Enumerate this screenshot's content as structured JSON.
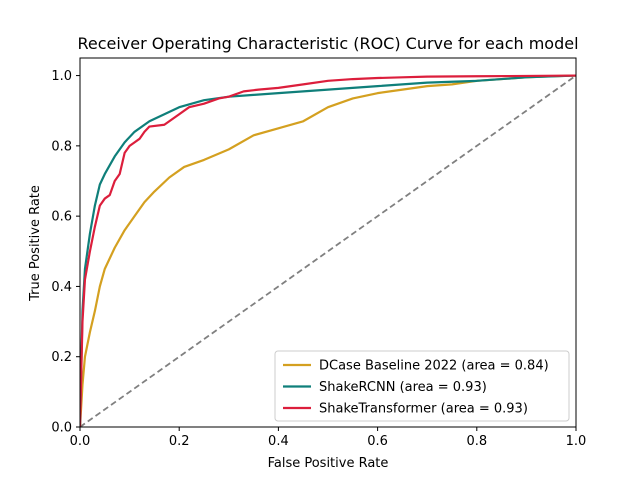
{
  "chart_data": {
    "type": "line",
    "title": "Receiver Operating Characteristic (ROC) Curve for each model",
    "xlabel": "False Positive Rate",
    "ylabel": "True Positive Rate",
    "xlim": [
      0,
      1
    ],
    "ylim": [
      0,
      1.05
    ],
    "xticks": [
      "0.0",
      "0.2",
      "0.4",
      "0.6",
      "0.8",
      "1.0"
    ],
    "yticks": [
      "0.0",
      "0.2",
      "0.4",
      "0.6",
      "0.8",
      "1.0"
    ],
    "grid": false,
    "legend_position": "lower-right",
    "reference_line": {
      "x": [
        0,
        1
      ],
      "y": [
        0,
        1
      ],
      "color": "#808080",
      "style": "dashed"
    },
    "series": [
      {
        "name": "DCase Baseline 2022 (area = 0.84)",
        "color": "#D4A020",
        "x": [
          0,
          0.005,
          0.01,
          0.02,
          0.03,
          0.04,
          0.05,
          0.07,
          0.09,
          0.11,
          0.13,
          0.15,
          0.18,
          0.21,
          0.25,
          0.3,
          0.35,
          0.4,
          0.45,
          0.5,
          0.55,
          0.6,
          0.65,
          0.7,
          0.75,
          0.8,
          0.85,
          0.9,
          0.95,
          1.0
        ],
        "y": [
          0,
          0.12,
          0.2,
          0.27,
          0.33,
          0.4,
          0.45,
          0.51,
          0.56,
          0.6,
          0.64,
          0.67,
          0.71,
          0.74,
          0.76,
          0.79,
          0.83,
          0.85,
          0.87,
          0.91,
          0.935,
          0.95,
          0.96,
          0.97,
          0.975,
          0.985,
          0.99,
          0.995,
          0.998,
          1.0
        ]
      },
      {
        "name": "ShakeRCNN (area = 0.93)",
        "color": "#0F7F7A",
        "x": [
          0,
          0.005,
          0.01,
          0.02,
          0.03,
          0.04,
          0.05,
          0.07,
          0.09,
          0.11,
          0.14,
          0.17,
          0.2,
          0.25,
          0.3,
          0.35,
          0.4,
          0.5,
          0.6,
          0.7,
          0.8,
          0.9,
          1.0
        ],
        "y": [
          0,
          0.33,
          0.45,
          0.55,
          0.63,
          0.69,
          0.72,
          0.77,
          0.81,
          0.84,
          0.87,
          0.89,
          0.91,
          0.93,
          0.94,
          0.945,
          0.95,
          0.96,
          0.97,
          0.98,
          0.985,
          0.995,
          1.0
        ]
      },
      {
        "name": "ShakeTransformer (area = 0.93)",
        "color": "#DC1E3C",
        "x": [
          0,
          0.005,
          0.01,
          0.02,
          0.03,
          0.04,
          0.05,
          0.06,
          0.07,
          0.08,
          0.09,
          0.1,
          0.11,
          0.12,
          0.13,
          0.14,
          0.17,
          0.18,
          0.2,
          0.22,
          0.25,
          0.28,
          0.3,
          0.33,
          0.36,
          0.4,
          0.45,
          0.5,
          0.55,
          0.6,
          0.65,
          0.7,
          0.8,
          0.9,
          1.0
        ],
        "y": [
          0,
          0.3,
          0.42,
          0.5,
          0.57,
          0.63,
          0.65,
          0.66,
          0.7,
          0.72,
          0.78,
          0.8,
          0.81,
          0.82,
          0.84,
          0.855,
          0.86,
          0.87,
          0.89,
          0.91,
          0.92,
          0.935,
          0.94,
          0.955,
          0.96,
          0.965,
          0.975,
          0.985,
          0.99,
          0.993,
          0.995,
          0.997,
          0.998,
          0.999,
          1.0
        ]
      }
    ]
  }
}
